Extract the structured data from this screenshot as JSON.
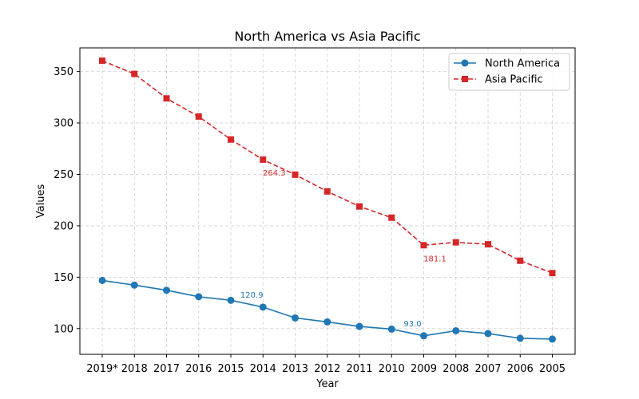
{
  "chart_data": {
    "type": "line",
    "title": "North America vs Asia Pacific",
    "xlabel": "Year",
    "ylabel": "Values",
    "categories": [
      "2019*",
      "2018",
      "2017",
      "2016",
      "2015",
      "2014",
      "2013",
      "2012",
      "2011",
      "2010",
      "2009",
      "2008",
      "2007",
      "2006",
      "2005"
    ],
    "ylim": [
      75,
      373
    ],
    "yticks": [
      100,
      150,
      200,
      250,
      300,
      350
    ],
    "grid": true,
    "legend_position": "top-right",
    "series": [
      {
        "name": "North America",
        "color": "#1f77b4",
        "line_style": "solid",
        "marker": "circle",
        "values": [
          146.8,
          142.3,
          137.3,
          131.0,
          127.5,
          120.9,
          110.4,
          106.5,
          102.1,
          99.5,
          93.0,
          97.9,
          95.2,
          90.6,
          89.8
        ]
      },
      {
        "name": "Asia Pacific",
        "color": "#d62728",
        "line_style": "dashed",
        "marker": "square",
        "values": [
          360.5,
          347.7,
          323.9,
          306.2,
          283.9,
          264.3,
          249.7,
          233.4,
          218.8,
          207.9,
          181.1,
          183.9,
          182.0,
          166.0,
          154.0
        ]
      }
    ],
    "annotations": [
      {
        "series": 0,
        "index": 5,
        "text": "120.9"
      },
      {
        "series": 0,
        "index": 10,
        "text": "93.0"
      },
      {
        "series": 1,
        "index": 5,
        "text": "264.3"
      },
      {
        "series": 1,
        "index": 10,
        "text": "181.1"
      }
    ]
  }
}
